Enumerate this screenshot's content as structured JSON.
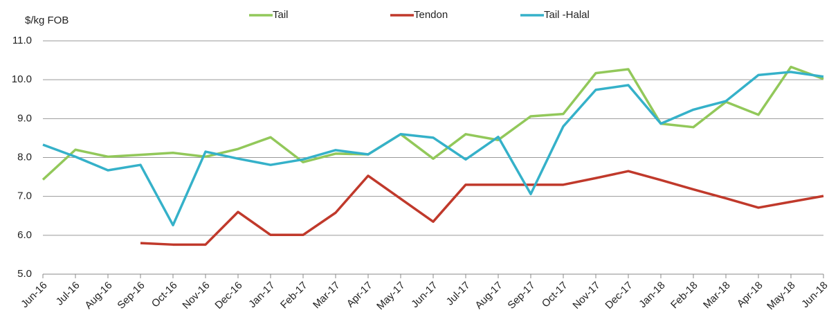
{
  "chart_data": {
    "type": "line",
    "y_label": "$/kg FOB",
    "categories": [
      "Jun-16",
      "Jul-16",
      "Aug-16",
      "Sep-16",
      "Oct-16",
      "Nov-16",
      "Dec-16",
      "Jan-17",
      "Feb-17",
      "Mar-17",
      "Apr-17",
      "May-17",
      "Jun-17",
      "Jul-17",
      "Aug-17",
      "Sep-17",
      "Oct-17",
      "Nov-17",
      "Dec-17",
      "Jan-18",
      "Feb-18",
      "Mar-18",
      "Apr-18",
      "May-18",
      "Jun-18"
    ],
    "series": [
      {
        "name": "Tail",
        "color": "#92c85a",
        "values": [
          7.43,
          8.2,
          8.02,
          8.07,
          8.12,
          8.02,
          8.22,
          8.52,
          7.88,
          8.1,
          8.08,
          8.6,
          7.97,
          8.6,
          8.45,
          9.06,
          9.12,
          10.17,
          10.27,
          8.87,
          8.78,
          9.43,
          9.1,
          10.33,
          10.02
        ]
      },
      {
        "name": "Tendon",
        "color": "#c0392b",
        "values": [
          null,
          null,
          null,
          5.8,
          5.76,
          5.76,
          6.6,
          6.01,
          6.01,
          6.58,
          7.53,
          6.94,
          6.35,
          7.3,
          7.3,
          7.3,
          7.3,
          7.47,
          7.65,
          7.42,
          7.18,
          6.95,
          6.71,
          6.86,
          7.01
        ]
      },
      {
        "name": "Tail -Halal",
        "color": "#35b1c9",
        "values": [
          8.33,
          8.02,
          7.67,
          7.81,
          6.26,
          8.15,
          7.97,
          7.81,
          7.95,
          8.19,
          8.08,
          8.6,
          8.51,
          7.95,
          8.53,
          7.06,
          8.8,
          9.74,
          9.86,
          8.87,
          9.23,
          9.45,
          10.12,
          10.2,
          10.08
        ]
      }
    ],
    "ylim": [
      5,
      11
    ],
    "yticks": [
      {
        "value": 5,
        "label": "5.0"
      },
      {
        "value": 6,
        "label": "6.0"
      },
      {
        "value": 7,
        "label": "7.0"
      },
      {
        "value": 8,
        "label": "8.0"
      },
      {
        "value": 9,
        "label": "9.0"
      },
      {
        "value": 10,
        "label": "10.0"
      },
      {
        "value": 11,
        "label": "11.0"
      }
    ],
    "grid": true
  }
}
